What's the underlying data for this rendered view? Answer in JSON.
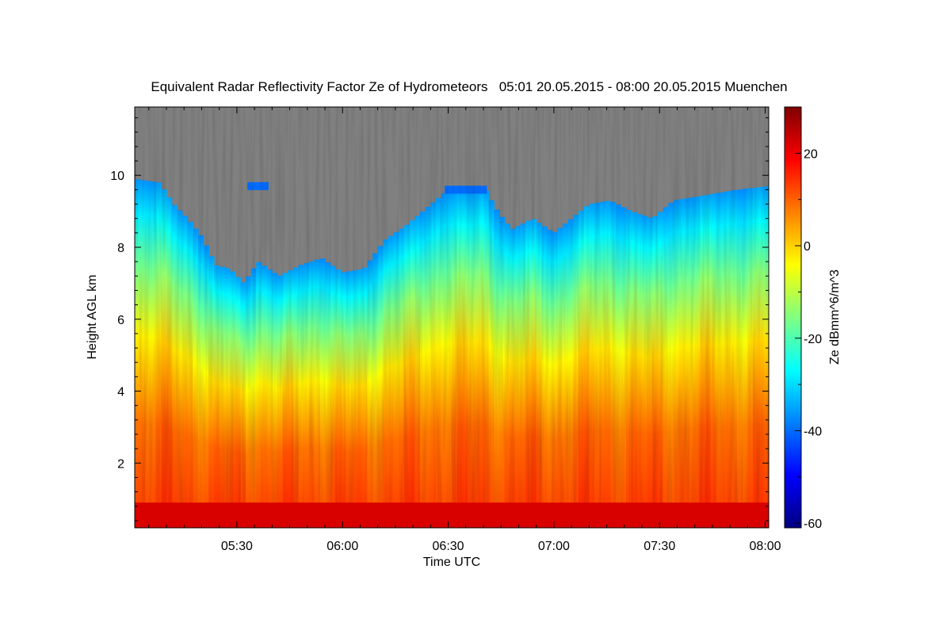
{
  "chart_data": {
    "type": "heatmap",
    "title": "Equivalent Radar Reflectivity Factor Ze of Hydrometeors   05:01 20.05.2015 - 08:00 20.05.2015 Muenchen",
    "xlabel": "Time UTC",
    "ylabel": "Height AGL km",
    "colorbar_label": "Ze dBmm^6/m^3",
    "x_unit": "minutes UTC",
    "xlim": [
      301,
      481
    ],
    "ylim": [
      0.2,
      11.9
    ],
    "clim": [
      -61,
      30
    ],
    "x_ticks": [
      {
        "value": 330,
        "label": "05:30"
      },
      {
        "value": 360,
        "label": "06:00"
      },
      {
        "value": 390,
        "label": "06:30"
      },
      {
        "value": 420,
        "label": "07:00"
      },
      {
        "value": 450,
        "label": "07:30"
      },
      {
        "value": 480,
        "label": "08:00"
      }
    ],
    "y_ticks": [
      {
        "value": 2,
        "label": "2"
      },
      {
        "value": 4,
        "label": "4"
      },
      {
        "value": 6,
        "label": "6"
      },
      {
        "value": 8,
        "label": "8"
      },
      {
        "value": 10,
        "label": "10"
      }
    ],
    "colorbar_ticks": [
      {
        "value": 20,
        "label": "20"
      },
      {
        "value": 0,
        "label": "0"
      },
      {
        "value": -20,
        "label": "-20"
      },
      {
        "value": -40,
        "label": "-40"
      },
      {
        "value": -60,
        "label": "-60"
      }
    ],
    "no_data_color": "#808080",
    "colormap": [
      "#000080",
      "#0000ff",
      "#0080ff",
      "#00ffff",
      "#80ff80",
      "#ffff00",
      "#ff8000",
      "#ff0000",
      "#800000"
    ],
    "echo_top_km": [
      {
        "t": 301,
        "h": 9.9
      },
      {
        "t": 308,
        "h": 9.8
      },
      {
        "t": 312,
        "h": 9.2
      },
      {
        "t": 316,
        "h": 8.8
      },
      {
        "t": 320,
        "h": 8.3
      },
      {
        "t": 324,
        "h": 7.5
      },
      {
        "t": 328,
        "h": 7.4
      },
      {
        "t": 332,
        "h": 7.0
      },
      {
        "t": 336,
        "h": 7.6
      },
      {
        "t": 342,
        "h": 7.2
      },
      {
        "t": 348,
        "h": 7.5
      },
      {
        "t": 354,
        "h": 7.7
      },
      {
        "t": 360,
        "h": 7.3
      },
      {
        "t": 366,
        "h": 7.4
      },
      {
        "t": 372,
        "h": 8.2
      },
      {
        "t": 378,
        "h": 8.6
      },
      {
        "t": 384,
        "h": 9.1
      },
      {
        "t": 390,
        "h": 9.6
      },
      {
        "t": 396,
        "h": 9.5
      },
      {
        "t": 400,
        "h": 9.7
      },
      {
        "t": 404,
        "h": 9.0
      },
      {
        "t": 408,
        "h": 8.5
      },
      {
        "t": 414,
        "h": 8.8
      },
      {
        "t": 420,
        "h": 8.4
      },
      {
        "t": 425,
        "h": 8.8
      },
      {
        "t": 430,
        "h": 9.2
      },
      {
        "t": 436,
        "h": 9.3
      },
      {
        "t": 442,
        "h": 9.0
      },
      {
        "t": 448,
        "h": 8.8
      },
      {
        "t": 454,
        "h": 9.3
      },
      {
        "t": 460,
        "h": 9.4
      },
      {
        "t": 466,
        "h": 9.5
      },
      {
        "t": 472,
        "h": 9.6
      },
      {
        "t": 481,
        "h": 9.7
      }
    ],
    "isolated_echoes": [
      {
        "t_start": 333,
        "t_end": 339,
        "h": 9.7
      },
      {
        "t_start": 389,
        "t_end": 401,
        "h": 9.6
      }
    ],
    "melting_layer_km": [
      0.2,
      0.9
    ],
    "melting_layer_ze": 22
  }
}
